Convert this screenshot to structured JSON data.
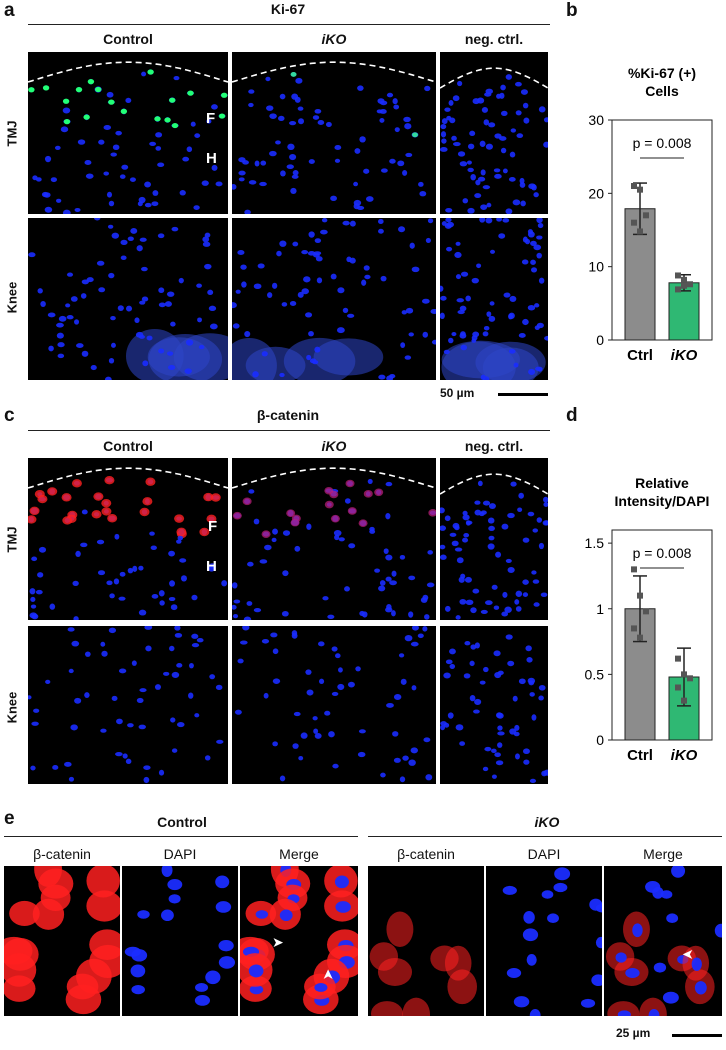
{
  "panels": {
    "a": {
      "letter": "a",
      "title": "Ki-67",
      "columns": [
        "Control",
        "iKO",
        "neg. ctrl."
      ],
      "rows": [
        "TMJ",
        "Knee"
      ],
      "zone_labels": [
        "F",
        "H"
      ],
      "scalebar": "50 µm"
    },
    "b": {
      "letter": "b"
    },
    "c": {
      "letter": "c",
      "title": "β-catenin",
      "columns": [
        "Control",
        "iKO",
        "neg. ctrl."
      ],
      "rows": [
        "TMJ",
        "Knee"
      ],
      "zone_labels": [
        "F",
        "H"
      ]
    },
    "d": {
      "letter": "d"
    },
    "e": {
      "letter": "e",
      "groups": [
        "Control",
        "iKO"
      ],
      "channels": [
        "β-catenin",
        "DAPI",
        "Merge"
      ],
      "scalebar": "25 µm"
    }
  },
  "colors": {
    "dapi": "#1a2cff",
    "ki67": "#22ff77",
    "bcat": "#ff2020",
    "ctrl_bar": "#8c8c8c",
    "ikO_bar": "#2fb873"
  },
  "chart_data": [
    {
      "type": "bar",
      "title": "%Ki-67 (+) Cells",
      "categories": [
        "Ctrl",
        "iKO"
      ],
      "values": [
        17.9,
        7.8
      ],
      "error": [
        3.5,
        1.1
      ],
      "points": [
        [
          21,
          20.5,
          17,
          16,
          14.8
        ],
        [
          8.8,
          8.2,
          7.6,
          6.9,
          7.4
        ]
      ],
      "ylim": [
        0,
        30
      ],
      "yticks": [
        0,
        10,
        20,
        30
      ],
      "annotation": "p = 0.008"
    },
    {
      "type": "bar",
      "title": "Relative Intensity/DAPI",
      "categories": [
        "Ctrl",
        "iKO"
      ],
      "values": [
        1.0,
        0.48
      ],
      "error": [
        0.25,
        0.22
      ],
      "points": [
        [
          1.3,
          1.1,
          0.98,
          0.85,
          0.78
        ],
        [
          0.62,
          0.5,
          0.47,
          0.4,
          0.3
        ]
      ],
      "ylim": [
        0,
        1.6
      ],
      "yticks": [
        0,
        0.5,
        1,
        1.5
      ],
      "ytick_labels": [
        "0",
        "0.5",
        "1",
        "1.5"
      ],
      "annotation": "p = 0.008"
    }
  ]
}
